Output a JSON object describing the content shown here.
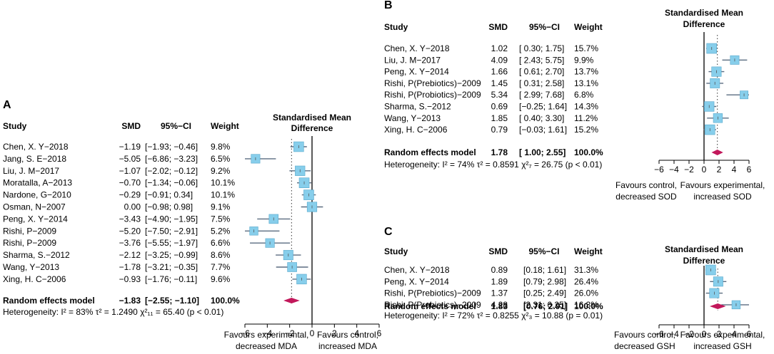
{
  "chart_data": [
    {
      "type": "forest",
      "panel": "A",
      "headers": {
        "study": "Study",
        "smd": "SMD",
        "ci": "95%−CI",
        "weight": "Weight",
        "plot_title_1": "Standardised Mean",
        "plot_title_2": "Difference"
      },
      "rows": [
        {
          "study": "Chen, X. Y−2018",
          "smd_text": "−1.19",
          "ci_text": "[−1.93; −0.46]",
          "weight": "9.8%",
          "smd": -1.19,
          "lo": -1.93,
          "hi": -0.46,
          "w": 9.8
        },
        {
          "study": "Jang, S. E−2018",
          "smd_text": "−5.05",
          "ci_text": "[−6.86; −3.23]",
          "weight": "6.5%",
          "smd": -5.05,
          "lo": -6.86,
          "hi": -3.23,
          "w": 6.5
        },
        {
          "study": "Liu, J. M−2017",
          "smd_text": "−1.07",
          "ci_text": "[−2.02; −0.12]",
          "weight": "9.2%",
          "smd": -1.07,
          "lo": -2.02,
          "hi": -0.12,
          "w": 9.2
        },
        {
          "study": "Moratalla, A−2013",
          "smd_text": "−0.70",
          "ci_text": "[−1.34; −0.06]",
          "weight": "10.1%",
          "smd": -0.7,
          "lo": -1.34,
          "hi": -0.06,
          "w": 10.1
        },
        {
          "study": "Nardone, G−2010",
          "smd_text": "−0.29",
          "ci_text": "[−0.91;  0.34]",
          "weight": "10.1%",
          "smd": -0.29,
          "lo": -0.91,
          "hi": 0.34,
          "w": 10.1
        },
        {
          "study": "Osman, N−2007",
          "smd_text": "0.00",
          "ci_text": "[−0.98;  0.98]",
          "weight": "9.1%",
          "smd": 0.0,
          "lo": -0.98,
          "hi": 0.98,
          "w": 9.1
        },
        {
          "study": "Peng, X. Y−2014",
          "smd_text": "−3.43",
          "ci_text": "[−4.90; −1.95]",
          "weight": "7.5%",
          "smd": -3.43,
          "lo": -4.9,
          "hi": -1.95,
          "w": 7.5
        },
        {
          "study": "Rishi, P−2009",
          "smd_text": "−5.20",
          "ci_text": "[−7.50; −2.91]",
          "weight": "5.2%",
          "smd": -5.2,
          "lo": -7.5,
          "hi": -2.91,
          "w": 5.2
        },
        {
          "study": "Rishi, P−2009",
          "smd_text": "−3.76",
          "ci_text": "[−5.55; −1.97]",
          "weight": "6.6%",
          "smd": -3.76,
          "lo": -5.55,
          "hi": -1.97,
          "w": 6.6
        },
        {
          "study": "Sharma, S.−2012",
          "smd_text": "−2.12",
          "ci_text": "[−3.25; −0.99]",
          "weight": "8.6%",
          "smd": -2.12,
          "lo": -3.25,
          "hi": -0.99,
          "w": 8.6
        },
        {
          "study": "Wang, Y−2013",
          "smd_text": "−1.78",
          "ci_text": "[−3.21; −0.35]",
          "weight": "7.7%",
          "smd": -1.78,
          "lo": -3.21,
          "hi": -0.35,
          "w": 7.7
        },
        {
          "study": "Xing, H. C−2006",
          "smd_text": "−0.93",
          "ci_text": "[−1.76; −0.11]",
          "weight": "9.6%",
          "smd": -0.93,
          "lo": -1.76,
          "hi": -0.11,
          "w": 9.6
        }
      ],
      "summary": {
        "label": "Random effects model",
        "smd_text": "−1.83",
        "ci_text": "[−2.55; −1.10]",
        "weight": "100.0%",
        "smd": -1.83,
        "lo": -2.55,
        "hi": -1.1
      },
      "heterogeneity": "Heterogeneity: I² = 83%  τ² = 1.2490  χ²₁₁ = 65.40 (p < 0.01)",
      "xlim": [
        -6,
        6
      ],
      "ticks": [
        -6,
        -4,
        -2,
        0,
        2,
        4,
        6
      ],
      "tick_labels": [
        "−6",
        "−4",
        "−2",
        "0",
        "2",
        "4",
        "6"
      ],
      "left_label": [
        "Favours experimental,",
        "decreased MDA"
      ],
      "right_label": [
        "Favours control,",
        "increased MDA"
      ]
    },
    {
      "type": "forest",
      "panel": "B",
      "headers": {
        "study": "Study",
        "smd": "SMD",
        "ci": "95%−CI",
        "weight": "Weight",
        "plot_title_1": "Standardised Mean",
        "plot_title_2": "Difference"
      },
      "rows": [
        {
          "study": "Chen, X. Y−2018",
          "smd_text": "1.02",
          "ci_text": "[ 0.30; 1.75]",
          "weight": "15.7%",
          "smd": 1.02,
          "lo": 0.3,
          "hi": 1.75,
          "w": 15.7
        },
        {
          "study": "Liu, J. M−2017",
          "smd_text": "4.09",
          "ci_text": "[ 2.43; 5.75]",
          "weight": "9.9%",
          "smd": 4.09,
          "lo": 2.43,
          "hi": 5.75,
          "w": 9.9
        },
        {
          "study": "Peng, X. Y−2014",
          "smd_text": "1.66",
          "ci_text": "[ 0.61; 2.70]",
          "weight": "13.7%",
          "smd": 1.66,
          "lo": 0.61,
          "hi": 2.7,
          "w": 13.7
        },
        {
          "study": "Rishi, P(Prebiotics)−2009",
          "smd_text": "1.45",
          "ci_text": "[ 0.31; 2.58]",
          "weight": "13.1%",
          "smd": 1.45,
          "lo": 0.31,
          "hi": 2.58,
          "w": 13.1
        },
        {
          "study": "Rishi, P(Probiotics)−2009",
          "smd_text": "5.34",
          "ci_text": "[ 2.99; 7.68]",
          "weight": "6.8%",
          "smd": 5.34,
          "lo": 2.99,
          "hi": 7.68,
          "w": 6.8
        },
        {
          "study": "Sharma, S.−2012",
          "smd_text": "0.69",
          "ci_text": "[−0.25; 1.64]",
          "weight": "14.3%",
          "smd": 0.69,
          "lo": -0.25,
          "hi": 1.64,
          "w": 14.3
        },
        {
          "study": "Wang, Y−2013",
          "smd_text": "1.85",
          "ci_text": "[ 0.40; 3.30]",
          "weight": "11.2%",
          "smd": 1.85,
          "lo": 0.4,
          "hi": 3.3,
          "w": 11.2
        },
        {
          "study": "Xing, H. C−2006",
          "smd_text": "0.79",
          "ci_text": "[−0.03; 1.61]",
          "weight": "15.2%",
          "smd": 0.79,
          "lo": -0.03,
          "hi": 1.61,
          "w": 15.2
        }
      ],
      "summary": {
        "label": "Random effects model",
        "smd_text": "1.78",
        "ci_text": "[ 1.00; 2.55]",
        "weight": "100.0%",
        "smd": 1.78,
        "lo": 1.0,
        "hi": 2.55
      },
      "heterogeneity": "Heterogeneity: I² = 74%  τ² = 0.8591  χ²₇ = 26.75 (p < 0.01)",
      "xlim": [
        -6,
        6
      ],
      "ticks": [
        -6,
        -4,
        -2,
        0,
        2,
        4,
        6
      ],
      "tick_labels": [
        "−6",
        "−4",
        "−2",
        "0",
        "2",
        "4",
        "6"
      ],
      "left_label": [
        "Favours control,",
        "decreased SOD"
      ],
      "right_label": [
        "Favours experimental,",
        "increased SOD"
      ]
    },
    {
      "type": "forest",
      "panel": "C",
      "headers": {
        "study": "Study",
        "smd": "SMD",
        "ci": "95%−CI",
        "weight": "Weight",
        "plot_title_1": "Standardised Mean",
        "plot_title_2": "Difference"
      },
      "rows": [
        {
          "study": "Chen, X. Y−2018",
          "smd_text": "0.89",
          "ci_text": "[0.18; 1.61]",
          "weight": "31.3%",
          "smd": 0.89,
          "lo": 0.18,
          "hi": 1.61,
          "w": 31.3
        },
        {
          "study": "Peng, X. Y−2014",
          "smd_text": "1.89",
          "ci_text": "[0.79; 2.98]",
          "weight": "26.4%",
          "smd": 1.89,
          "lo": 0.79,
          "hi": 2.98,
          "w": 26.4
        },
        {
          "study": "Rishi, P(Prebiotics)−2009",
          "smd_text": "1.37",
          "ci_text": "[0.25; 2.49]",
          "weight": "26.0%",
          "smd": 1.37,
          "lo": 0.25,
          "hi": 2.49,
          "w": 26.0
        },
        {
          "study": "Rishi, P(Probiotics)−2009",
          "smd_text": "4.28",
          "ci_text": "[2.31; 6.25]",
          "weight": "16.3%",
          "smd": 4.28,
          "lo": 2.31,
          "hi": 6.25,
          "w": 16.3
        }
      ],
      "summary": {
        "label": "Random effects model",
        "smd_text": "1.83",
        "ci_text": "[0.76; 2.91]",
        "weight": "100.0%",
        "smd": 1.83,
        "lo": 0.76,
        "hi": 2.91
      },
      "heterogeneity": "Heterogeneity: I² = 72%  τ² = 0.8255  χ²₃ = 10.88 (p = 0.01)",
      "xlim": [
        -6,
        6
      ],
      "ticks": [
        -6,
        -4,
        -2,
        0,
        2,
        4,
        6
      ],
      "tick_labels": [
        "−6",
        "−4",
        "−2",
        "0",
        "2",
        "4",
        "6"
      ],
      "left_label": [
        "Favours control,",
        "decreased GSH"
      ],
      "right_label": [
        "Favours experimental,",
        "increased GSH"
      ]
    }
  ],
  "colors": {
    "box": "#87ceeb",
    "box_stroke": "#5aa9cc",
    "ci_line": "#5a6c80",
    "diamond": "#c2185b",
    "axis": "#000000"
  }
}
